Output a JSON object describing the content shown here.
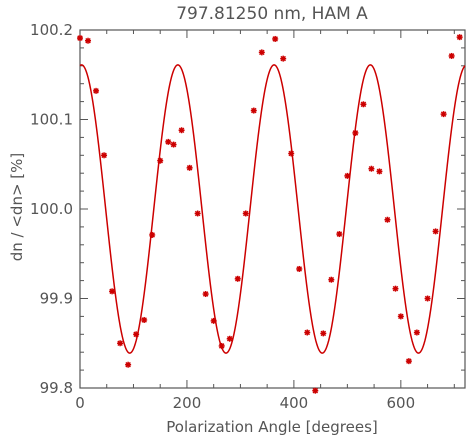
{
  "chart_data": {
    "type": "scatter",
    "title": "797.81250 nm, HAM A",
    "xlabel": "Polarization Angle [degrees]",
    "ylabel": "dn / <dn> [%]",
    "xlim": [
      0,
      720
    ],
    "ylim": [
      99.8,
      100.2
    ],
    "x_ticks": [
      0,
      200,
      400,
      600
    ],
    "y_ticks": [
      99.8,
      99.9,
      100.0,
      100.1,
      100.2
    ],
    "x_tick_labels": [
      "0",
      "200",
      "400",
      "600"
    ],
    "y_tick_labels": [
      "99.8",
      "99.9",
      "100.0",
      "100.1",
      "100.2"
    ],
    "grid": false,
    "color": "#cc0000",
    "series": [
      {
        "kind": "points",
        "marker": "asterisk",
        "points": [
          {
            "x": 0,
            "y": 100.191
          },
          {
            "x": 15,
            "y": 100.188
          },
          {
            "x": 30,
            "y": 100.132
          },
          {
            "x": 45,
            "y": 100.06
          },
          {
            "x": 60,
            "y": 99.908
          },
          {
            "x": 75,
            "y": 99.85
          },
          {
            "x": 90,
            "y": 99.826
          },
          {
            "x": 105,
            "y": 99.86
          },
          {
            "x": 120,
            "y": 99.876
          },
          {
            "x": 135,
            "y": 99.971
          },
          {
            "x": 150,
            "y": 100.054
          },
          {
            "x": 165,
            "y": 100.075
          },
          {
            "x": 175,
            "y": 100.072
          },
          {
            "x": 190,
            "y": 100.088
          },
          {
            "x": 205,
            "y": 100.046
          },
          {
            "x": 220,
            "y": 99.995
          },
          {
            "x": 235,
            "y": 99.905
          },
          {
            "x": 250,
            "y": 99.875
          },
          {
            "x": 265,
            "y": 99.847
          },
          {
            "x": 280,
            "y": 99.855
          },
          {
            "x": 295,
            "y": 99.922
          },
          {
            "x": 310,
            "y": 99.995
          },
          {
            "x": 325,
            "y": 100.11
          },
          {
            "x": 340,
            "y": 100.175
          },
          {
            "x": 365,
            "y": 100.19
          },
          {
            "x": 380,
            "y": 100.168
          },
          {
            "x": 395,
            "y": 100.062
          },
          {
            "x": 410,
            "y": 99.933
          },
          {
            "x": 425,
            "y": 99.862
          },
          {
            "x": 440,
            "y": 99.797
          },
          {
            "x": 455,
            "y": 99.861
          },
          {
            "x": 470,
            "y": 99.921
          },
          {
            "x": 485,
            "y": 99.972
          },
          {
            "x": 500,
            "y": 100.037
          },
          {
            "x": 515,
            "y": 100.085
          },
          {
            "x": 530,
            "y": 100.117
          },
          {
            "x": 545,
            "y": 100.045
          },
          {
            "x": 560,
            "y": 100.042
          },
          {
            "x": 575,
            "y": 99.988
          },
          {
            "x": 590,
            "y": 99.911
          },
          {
            "x": 600,
            "y": 99.88
          },
          {
            "x": 615,
            "y": 99.83
          },
          {
            "x": 630,
            "y": 99.862
          },
          {
            "x": 650,
            "y": 99.9
          },
          {
            "x": 665,
            "y": 99.975
          },
          {
            "x": 680,
            "y": 100.106
          },
          {
            "x": 695,
            "y": 100.171
          },
          {
            "x": 710,
            "y": 100.192
          }
        ]
      },
      {
        "kind": "fit-curve",
        "function": "offset + amplitude * cos(2 * pi * (x - phase) / period)",
        "offset": 100.0,
        "amplitude": 0.161,
        "period": 180,
        "phase": 3,
        "x_range": [
          0,
          720
        ]
      }
    ]
  }
}
